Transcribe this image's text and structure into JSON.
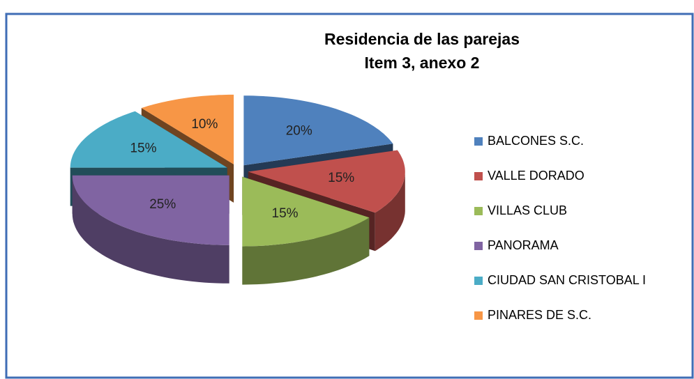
{
  "chart_data": {
    "type": "pie",
    "title": [
      "Residencia de las parejas",
      "Item 3, anexo 2"
    ],
    "categories": [
      "BALCONES S.C.",
      "VALLE DORADO",
      "VILLAS CLUB",
      "PANORAMA",
      "CIUDAD SAN CRISTOBAL I",
      "PINARES DE S.C."
    ],
    "values": [
      20,
      15,
      15,
      25,
      15,
      10
    ],
    "value_labels": [
      "20%",
      "15%",
      "15%",
      "25%",
      "15%",
      "10%"
    ],
    "colors": [
      "#4f81bd",
      "#c0504d",
      "#9bbb59",
      "#8064a2",
      "#4bacc6",
      "#f79646"
    ],
    "legend": "right"
  }
}
